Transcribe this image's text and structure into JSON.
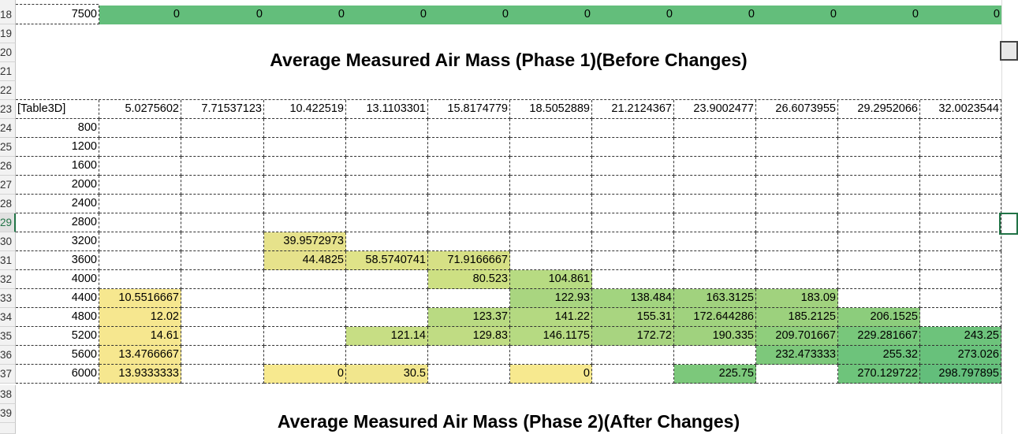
{
  "sheet": {
    "titles": {
      "phase1": "Average Measured Air Mass (Phase 1)(Before Changes)",
      "phase2": "Average Measured Air Mass (Phase 2)(After Changes)"
    },
    "selected_row": "29",
    "top_row": {
      "row_number": "18",
      "label": "7500",
      "values": [
        "0",
        "0",
        "0",
        "0",
        "0",
        "0",
        "0",
        "0",
        "0",
        "0",
        "0"
      ],
      "fill": "#63be7b"
    },
    "table": {
      "corner_label": "[Table3D]",
      "header_row_number": "23",
      "columns": [
        "5.0275602",
        "7.71537123",
        "10.422519",
        "13.1103301",
        "15.8174779",
        "18.5052889",
        "21.2124367",
        "23.9002477",
        "26.6073955",
        "29.2952066",
        "32.0023544"
      ],
      "rows": [
        {
          "n": "24",
          "label": "800",
          "cells": [
            "",
            "",
            "",
            "",
            "",
            "",
            "",
            "",
            "",
            "",
            ""
          ]
        },
        {
          "n": "25",
          "label": "1200",
          "cells": [
            "",
            "",
            "",
            "",
            "",
            "",
            "",
            "",
            "",
            "",
            ""
          ]
        },
        {
          "n": "26",
          "label": "1600",
          "cells": [
            "",
            "",
            "",
            "",
            "",
            "",
            "",
            "",
            "",
            "",
            ""
          ]
        },
        {
          "n": "27",
          "label": "2000",
          "cells": [
            "",
            "",
            "",
            "",
            "",
            "",
            "",
            "",
            "",
            "",
            ""
          ]
        },
        {
          "n": "28",
          "label": "2400",
          "cells": [
            "",
            "",
            "",
            "",
            "",
            "",
            "",
            "",
            "",
            "",
            ""
          ]
        },
        {
          "n": "29",
          "label": "2800",
          "cells": [
            "",
            "",
            "",
            "",
            "",
            "",
            "",
            "",
            "",
            "",
            ""
          ]
        },
        {
          "n": "30",
          "label": "3200",
          "cells": [
            "",
            "",
            "39.9572973",
            "",
            "",
            "",
            "",
            "",
            "",
            "",
            ""
          ]
        },
        {
          "n": "31",
          "label": "3600",
          "cells": [
            "",
            "",
            "44.4825",
            "58.5740741",
            "71.9166667",
            "",
            "",
            "",
            "",
            "",
            ""
          ]
        },
        {
          "n": "32",
          "label": "4000",
          "cells": [
            "",
            "",
            "",
            "",
            "80.523",
            "104.861",
            "",
            "",
            "",
            "",
            ""
          ]
        },
        {
          "n": "33",
          "label": "4400",
          "cells": [
            "10.5516667",
            "",
            "",
            "",
            "",
            "122.93",
            "138.484",
            "163.3125",
            "183.09",
            "",
            ""
          ]
        },
        {
          "n": "34",
          "label": "4800",
          "cells": [
            "12.02",
            "",
            "",
            "",
            "123.37",
            "141.22",
            "155.31",
            "172.644286",
            "185.2125",
            "206.1525",
            ""
          ]
        },
        {
          "n": "35",
          "label": "5200",
          "cells": [
            "14.61",
            "",
            "",
            "121.14",
            "129.83",
            "146.1175",
            "172.72",
            "190.335",
            "209.701667",
            "229.281667",
            "243.25"
          ]
        },
        {
          "n": "36",
          "label": "5600",
          "cells": [
            "13.4766667",
            "",
            "",
            "",
            "",
            "",
            "",
            "",
            "232.473333",
            "255.32",
            "273.026"
          ]
        },
        {
          "n": "37",
          "label": "6000",
          "cells": [
            "13.9333333",
            "",
            "0",
            "30.5",
            "",
            "0",
            "",
            "225.75",
            "",
            "270.129722",
            "298.797895"
          ]
        }
      ],
      "fills": [
        [
          "",
          "",
          "",
          "",
          "",
          "",
          "",
          "",
          "",
          "",
          ""
        ],
        [
          "",
          "",
          "",
          "",
          "",
          "",
          "",
          "",
          "",
          "",
          ""
        ],
        [
          "",
          "",
          "",
          "",
          "",
          "",
          "",
          "",
          "",
          "",
          ""
        ],
        [
          "",
          "",
          "",
          "",
          "",
          "",
          "",
          "",
          "",
          "",
          ""
        ],
        [
          "",
          "",
          "",
          "",
          "",
          "",
          "",
          "",
          "",
          "",
          ""
        ],
        [
          "",
          "",
          "",
          "",
          "",
          "",
          "",
          "",
          "",
          "",
          ""
        ],
        [
          "",
          "",
          "#e6e28b",
          "",
          "",
          "",
          "",
          "",
          "",
          "",
          ""
        ],
        [
          "",
          "",
          "#e6e28b",
          "#dfe388",
          "#d6e085",
          "",
          "",
          "",
          "",
          "",
          ""
        ],
        [
          "",
          "",
          "",
          "",
          "#cde083",
          "#b7db82",
          "",
          "",
          "",
          "",
          ""
        ],
        [
          "#f6e78f",
          "",
          "",
          "",
          "",
          "#a9d580",
          "#a2d47f",
          "#a1d27e",
          "#a1d27e",
          "",
          ""
        ],
        [
          "#f6e78f",
          "",
          "",
          "",
          "#b9da82",
          "#b4d981",
          "#a9d580",
          "#a0d27e",
          "#9cd17d",
          "#8ccd7c",
          ""
        ],
        [
          "#f6e78f",
          "",
          "",
          "#c7de84",
          "#c0dc83",
          "#b6da82",
          "#a8d480",
          "#a0d27e",
          "#8fce7c",
          "#78c77b",
          "#6dc37b"
        ],
        [
          "#f6e78f",
          "",
          "",
          "",
          "",
          "",
          "",
          "",
          "#7dc87b",
          "#6dc37b",
          "#68c17b"
        ],
        [
          "#f6e78f",
          "",
          "#f7e98f",
          "#f1e68d",
          "",
          "#f7e98f",
          "",
          "#7cc87b",
          "",
          "#6ec47b",
          "#63be7b"
        ]
      ]
    },
    "lower_rows": [
      "38",
      "39"
    ],
    "colors": {
      "header_bg": "#f2f2f2",
      "selection": "#217346",
      "grid_dash": "#333333"
    }
  }
}
